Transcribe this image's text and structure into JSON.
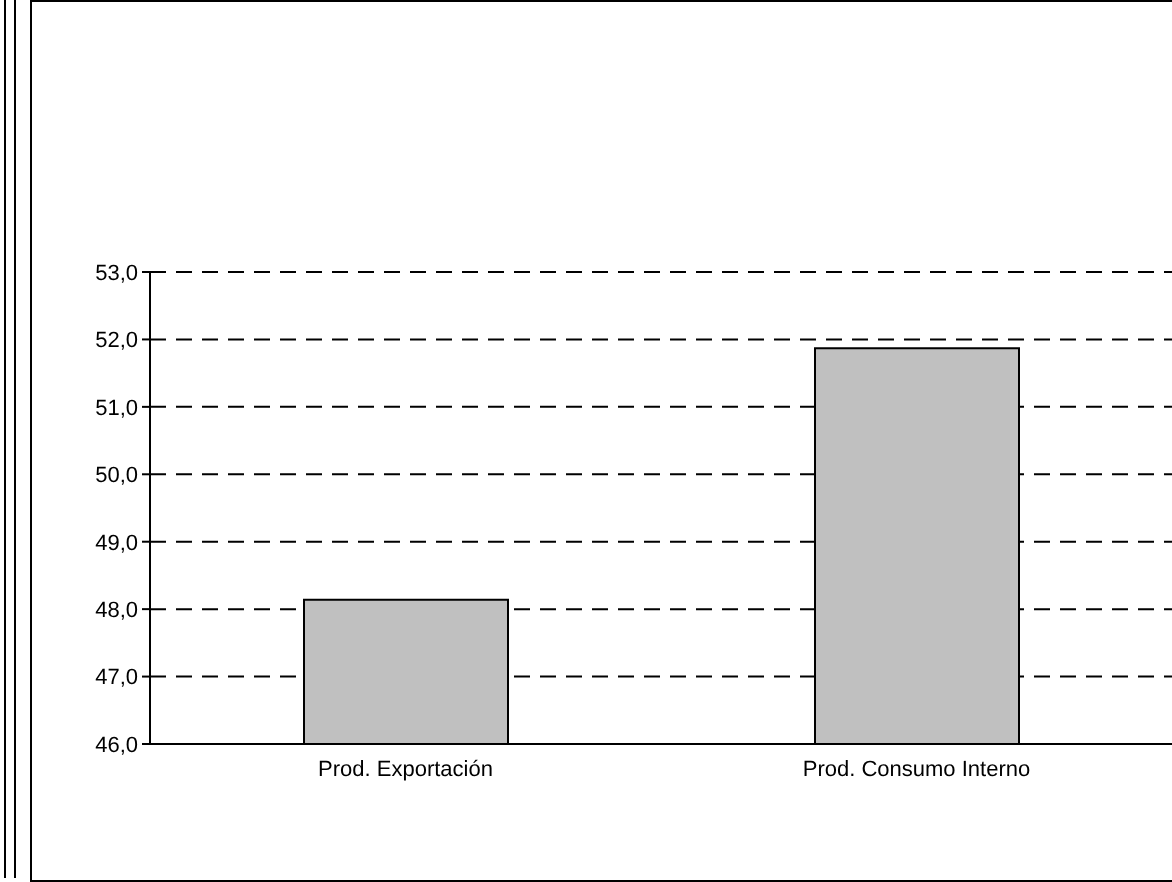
{
  "chart_data": {
    "type": "bar",
    "categories": [
      "Prod. Exportación",
      "Prod. Consumo Interno"
    ],
    "values": [
      48.14,
      51.87
    ],
    "color": "#c0c0c0",
    "ylim": [
      46,
      53
    ],
    "yticks": [
      {
        "value": 46,
        "label": "46,0"
      },
      {
        "value": 47,
        "label": "47,0"
      },
      {
        "value": 48,
        "label": "48,0"
      },
      {
        "value": 49,
        "label": "49,0"
      },
      {
        "value": 50,
        "label": "50,0"
      },
      {
        "value": 51,
        "label": "51,0"
      },
      {
        "value": 52,
        "label": "52,0"
      },
      {
        "value": 53,
        "label": "53,0"
      }
    ],
    "grid": "y"
  }
}
